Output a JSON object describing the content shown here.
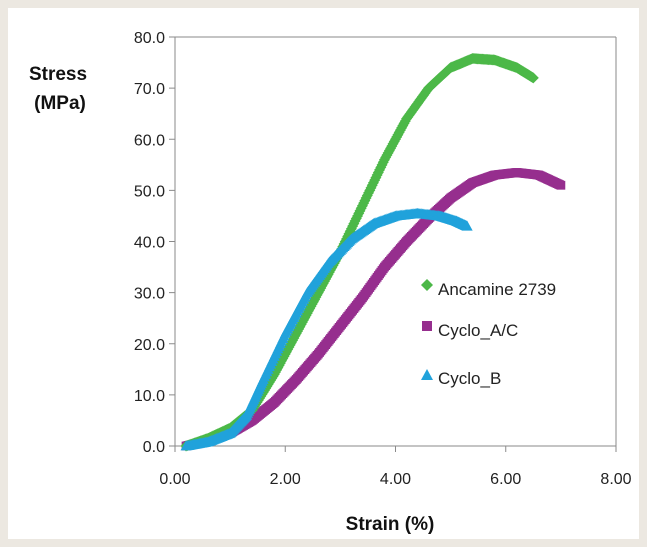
{
  "chart_data": {
    "type": "scatter",
    "title": "",
    "xlabel": "Strain (%)",
    "ylabel_line1": "Stress",
    "ylabel_line2": "(MPa)",
    "xlim": [
      0,
      8
    ],
    "ylim": [
      0,
      80
    ],
    "x_ticks": [
      "0.00",
      "2.00",
      "4.00",
      "6.00",
      "8.00"
    ],
    "y_ticks": [
      "0.0",
      "10.0",
      "20.0",
      "30.0",
      "40.0",
      "50.0",
      "60.0",
      "70.0",
      "80.0"
    ],
    "grid": false,
    "legend_position": "right-center",
    "series": [
      {
        "name": "Ancamine 2739",
        "color": "#4cb848",
        "marker": "diamond",
        "points": [
          [
            0.2,
            0.0
          ],
          [
            0.6,
            1.5
          ],
          [
            1.0,
            3.5
          ],
          [
            1.4,
            7.0
          ],
          [
            1.8,
            14.0
          ],
          [
            2.2,
            22.0
          ],
          [
            2.6,
            30.0
          ],
          [
            3.0,
            38.0
          ],
          [
            3.4,
            47.0
          ],
          [
            3.8,
            56.0
          ],
          [
            4.2,
            64.0
          ],
          [
            4.6,
            70.0
          ],
          [
            5.0,
            74.0
          ],
          [
            5.4,
            75.8
          ],
          [
            5.8,
            75.5
          ],
          [
            6.2,
            74.0
          ],
          [
            6.5,
            72.0
          ]
        ]
      },
      {
        "name": "Cyclo_A/C",
        "color": "#962e8e",
        "marker": "square",
        "points": [
          [
            0.2,
            0.0
          ],
          [
            0.6,
            1.0
          ],
          [
            1.0,
            2.5
          ],
          [
            1.4,
            5.0
          ],
          [
            1.8,
            8.5
          ],
          [
            2.2,
            13.0
          ],
          [
            2.6,
            18.0
          ],
          [
            3.0,
            23.5
          ],
          [
            3.4,
            29.0
          ],
          [
            3.8,
            35.0
          ],
          [
            4.2,
            40.0
          ],
          [
            4.6,
            44.5
          ],
          [
            5.0,
            48.5
          ],
          [
            5.4,
            51.5
          ],
          [
            5.8,
            53.0
          ],
          [
            6.2,
            53.5
          ],
          [
            6.6,
            53.0
          ],
          [
            7.0,
            51.0
          ]
        ]
      },
      {
        "name": "Cyclo_B",
        "color": "#21a2db",
        "marker": "triangle",
        "points": [
          [
            0.2,
            0.0
          ],
          [
            0.6,
            0.8
          ],
          [
            1.0,
            2.5
          ],
          [
            1.3,
            6.0
          ],
          [
            1.6,
            13.0
          ],
          [
            2.0,
            22.0
          ],
          [
            2.4,
            30.0
          ],
          [
            2.8,
            36.0
          ],
          [
            3.2,
            40.5
          ],
          [
            3.6,
            43.5
          ],
          [
            4.0,
            45.0
          ],
          [
            4.4,
            45.5
          ],
          [
            4.8,
            45.0
          ],
          [
            5.1,
            44.0
          ],
          [
            5.3,
            43.0
          ]
        ]
      }
    ]
  }
}
